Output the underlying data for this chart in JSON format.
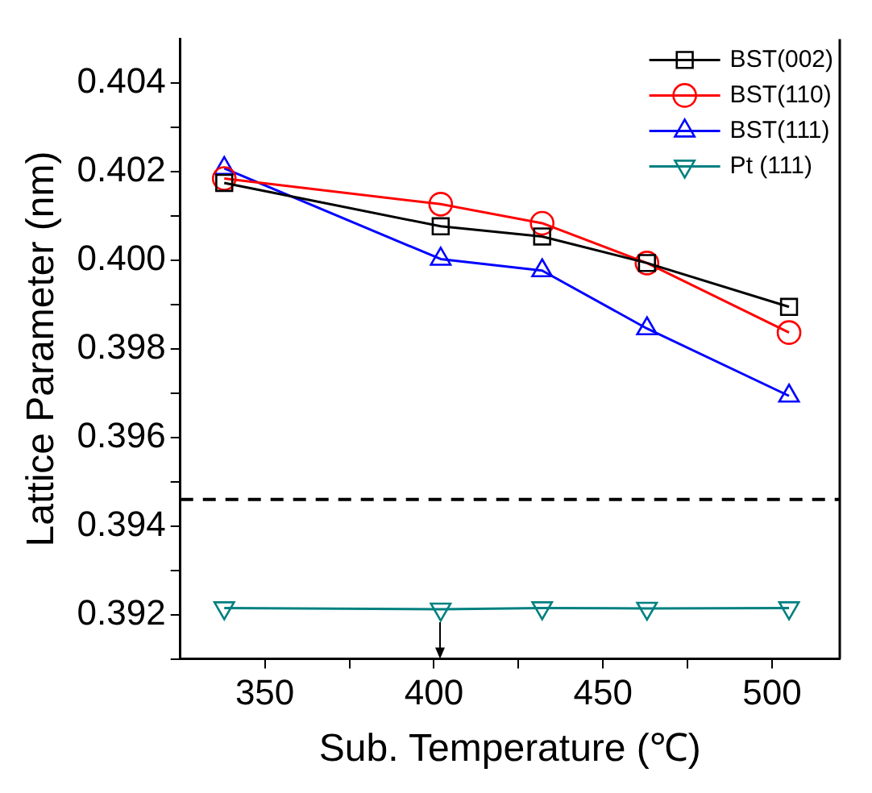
{
  "chart_data": {
    "type": "line",
    "xlabel": "Sub. Temperature (℃)",
    "ylabel": "Lattice Parameter (nm)",
    "xlim": [
      325,
      520
    ],
    "xticks": [
      350,
      {
        "value": 375,
        "label": null
      },
      400,
      {
        "value": 425,
        "label": null
      },
      450,
      {
        "value": 475,
        "label": null
      },
      500
    ],
    "ylim": [
      0.391,
      0.405
    ],
    "yticks": [
      {
        "value": 0.393,
        "label": null
      },
      0.392,
      0.394,
      {
        "value": 0.395,
        "label": null
      },
      0.396,
      {
        "value": 0.397,
        "label": null
      },
      0.398,
      {
        "value": 0.399,
        "label": null
      },
      {
        "value": 0.4,
        "label": "0.400"
      },
      {
        "value": 0.401,
        "label": null
      },
      0.402,
      {
        "value": 0.403,
        "label": null
      },
      0.404,
      {
        "value": 0.391,
        "label": null
      }
    ],
    "x": [
      338,
      402,
      432,
      463,
      505
    ],
    "series": [
      {
        "name": "BST(002)",
        "color": "#000000",
        "marker": "square",
        "values": [
          0.40175,
          0.40077,
          0.40054,
          0.39994,
          0.39895
        ]
      },
      {
        "name": "BST(110)",
        "color": "#ff0000",
        "marker": "circle",
        "values": [
          0.40185,
          0.40127,
          0.40084,
          0.39994,
          0.39837
        ]
      },
      {
        "name": "BST(111)",
        "color": "#0000ff",
        "marker": "triangle",
        "values": [
          0.40208,
          0.40003,
          0.39977,
          0.39846,
          0.39694
        ]
      },
      {
        "name": "Pt (111)",
        "color": "#008080",
        "marker": "triangle-down",
        "values": [
          0.39215,
          0.39212,
          0.39215,
          0.39214,
          0.39215
        ]
      }
    ],
    "ref_lines": [
      {
        "axis": "y",
        "value": 0.3946,
        "color": "#000000",
        "line_style": "dashed"
      }
    ],
    "legend": "top right",
    "grid": false,
    "line_style": "solid"
  }
}
